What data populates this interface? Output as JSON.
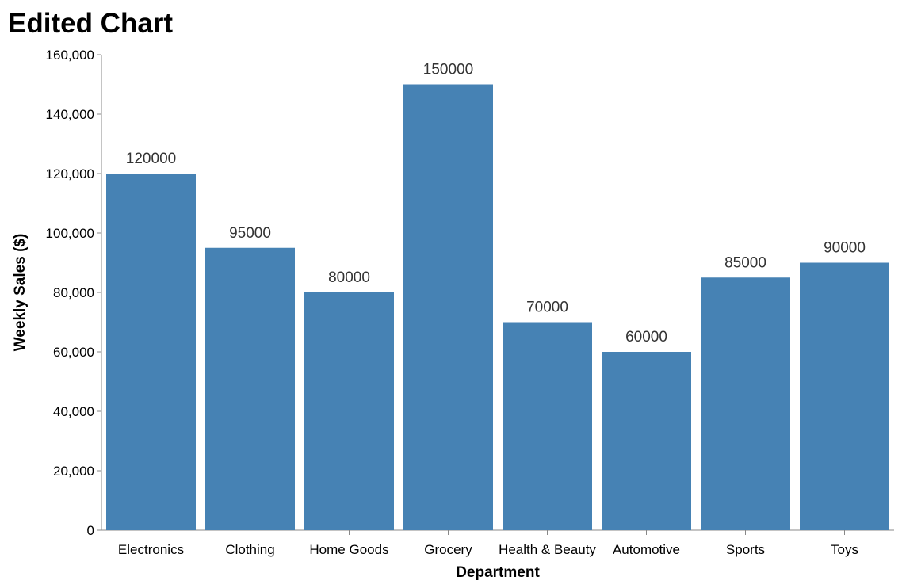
{
  "chart_data": {
    "type": "bar",
    "title": "Edited Chart",
    "xlabel": "Department",
    "ylabel": "Weekly Sales ($)",
    "categories": [
      "Electronics",
      "Clothing",
      "Home Goods",
      "Grocery",
      "Health & Beauty",
      "Automotive",
      "Sports",
      "Toys"
    ],
    "values": [
      120000,
      95000,
      80000,
      150000,
      70000,
      60000,
      85000,
      90000
    ],
    "data_labels": [
      "120000",
      "95000",
      "80000",
      "150000",
      "70000",
      "60000",
      "85000",
      "90000"
    ],
    "ylim": [
      0,
      160000
    ],
    "yticks": [
      0,
      20000,
      40000,
      60000,
      80000,
      100000,
      120000,
      140000,
      160000
    ],
    "ytick_labels": [
      "0",
      "20,000",
      "40,000",
      "60,000",
      "80,000",
      "100,000",
      "120,000",
      "140,000",
      "160,000"
    ],
    "grid": false,
    "bar_color": "#4682b4"
  }
}
